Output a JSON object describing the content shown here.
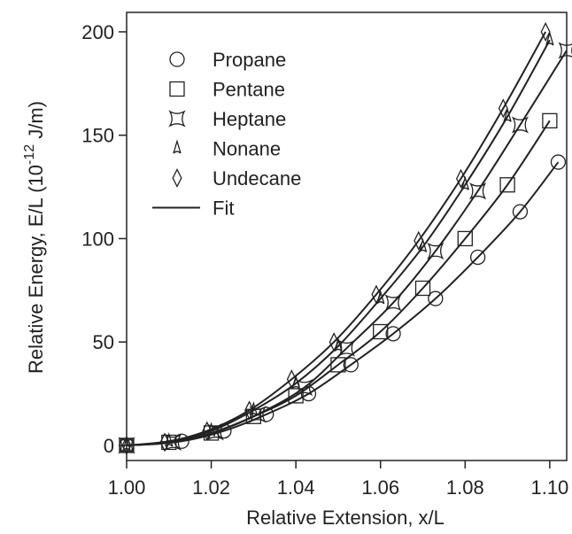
{
  "chart_data": {
    "type": "scatter",
    "xlabel": "Relative Extension, x/L",
    "ylabel": {
      "text": "Relative Energy, E/L (10",
      "sup": "-12",
      "after": " J/m)"
    },
    "xlim": [
      1.0,
      1.104
    ],
    "ylim": [
      -7.3,
      209.4
    ],
    "xticks": [
      {
        "value": 1.0,
        "label": "1.00"
      },
      {
        "value": 1.02,
        "label": "1.02"
      },
      {
        "value": 1.04,
        "label": "1.04"
      },
      {
        "value": 1.06,
        "label": "1.06"
      },
      {
        "value": 1.08,
        "label": "1.08"
      },
      {
        "value": 1.1,
        "label": "1.10"
      }
    ],
    "yticks": [
      0,
      50,
      100,
      150,
      200
    ],
    "fit_label": "Fit",
    "color": "#222222",
    "series": [
      {
        "name": "Propane",
        "marker": "circle",
        "x": [
          1.0,
          1.013,
          1.023,
          1.033,
          1.043,
          1.053,
          1.063,
          1.073,
          1.083,
          1.093,
          1.102
        ],
        "values": [
          0,
          2,
          7,
          15,
          25,
          39,
          54,
          71,
          91,
          113,
          137
        ]
      },
      {
        "name": "Pentane",
        "marker": "square",
        "x": [
          1.0,
          1.01,
          1.02,
          1.03,
          1.04,
          1.05,
          1.06,
          1.07,
          1.08,
          1.09,
          1.1
        ],
        "values": [
          0,
          1.5,
          6,
          14,
          24,
          39,
          55,
          76,
          100,
          126,
          157
        ]
      },
      {
        "name": "Heptane",
        "marker": "star4",
        "x": [
          1.0,
          1.011,
          1.021,
          1.031,
          1.042,
          1.052,
          1.063,
          1.073,
          1.083,
          1.093,
          1.104
        ],
        "values": [
          0,
          1.5,
          6.5,
          15,
          28,
          47,
          69,
          94,
          123,
          155,
          191
        ]
      },
      {
        "name": "Nonane",
        "marker": "triangle",
        "x": [
          1.0,
          1.01,
          1.02,
          1.03,
          1.04,
          1.05,
          1.06,
          1.07,
          1.08,
          1.09,
          1.1
        ],
        "values": [
          0,
          2,
          7,
          17,
          30,
          48,
          71,
          96,
          126,
          159,
          196
        ]
      },
      {
        "name": "Undecane",
        "marker": "diamond",
        "x": [
          1.0,
          1.009,
          1.019,
          1.029,
          1.039,
          1.049,
          1.059,
          1.069,
          1.079,
          1.089,
          1.099
        ],
        "values": [
          0,
          1.5,
          7,
          17,
          32,
          50,
          73,
          99,
          129,
          163,
          200
        ]
      }
    ]
  }
}
